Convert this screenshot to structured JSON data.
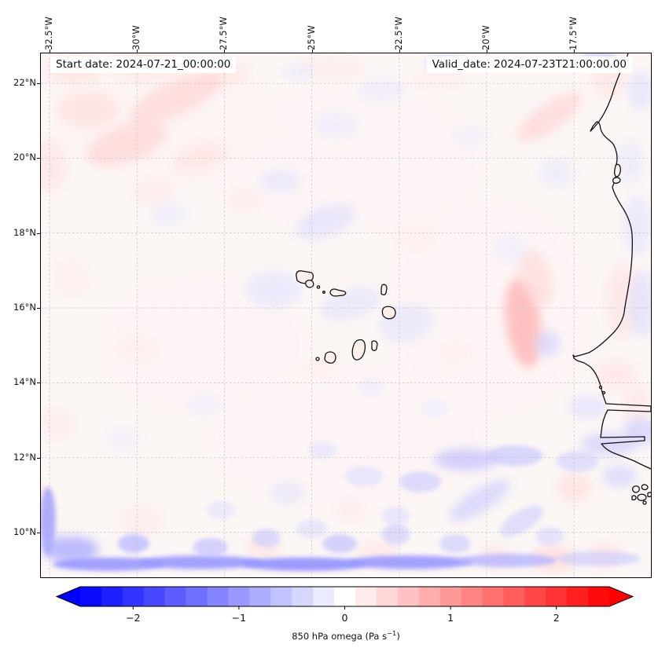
{
  "figure": {
    "start_date_label": "Start date: 2024-07-21_00:00:00",
    "valid_date_label": "Valid_date: 2024-07-23T21:00:00.00"
  },
  "axes": {
    "top_ticks": [
      "32.5°W",
      "30°W",
      "27.5°W",
      "25°W",
      "22.5°W",
      "20°W",
      "17.5°W"
    ],
    "left_ticks": [
      "22°N",
      "20°N",
      "18°N",
      "16°N",
      "14°N",
      "12°N",
      "10°N"
    ]
  },
  "colorbar": {
    "vmin": -2.5,
    "vmax": 2.5,
    "step": 0.2,
    "extend": "both",
    "tick_values": [
      -2,
      -1,
      0,
      1,
      2
    ],
    "tick_labels": [
      "−2",
      "−1",
      "0",
      "1",
      "2"
    ],
    "label_prefix": "850 hPa omega (Pa s",
    "label_sup": "−1",
    "label_suffix": ")",
    "color_negative": "#0000ff",
    "color_zero": "#ffffff",
    "color_positive": "#ff0000"
  },
  "chart_data": {
    "type": "heatmap",
    "field_name": "850 hPa omega",
    "units": "Pa s−1",
    "colormap": "bwr",
    "annotations": [
      "Start date: 2024-07-21_00:00:00",
      "Valid_date: 2024-07-23T21:00:00.00"
    ],
    "projection_extent": {
      "lon_west": -32.75,
      "lon_east": -15.3,
      "lat_south": 8.8,
      "lat_north": 22.8
    },
    "grid_lons_w": [
      32.5,
      30,
      27.5,
      25,
      22.5,
      20,
      17.5
    ],
    "grid_lats_n": [
      22,
      20,
      18,
      16,
      14,
      12,
      10
    ],
    "grid_on": true,
    "legend_position": "bottom-colorbar",
    "features": [
      {
        "lon": -29.0,
        "lat": 21.0,
        "value": 0.12,
        "rx": 3.2,
        "ry": 1.6,
        "rot": 0
      },
      {
        "lon": -24.0,
        "lat": 20.0,
        "value": 0.1,
        "rx": 4.0,
        "ry": 2.0,
        "rot": 0
      },
      {
        "lon": -20.0,
        "lat": 16.0,
        "value": 0.1,
        "rx": 3.0,
        "ry": 3.0,
        "rot": 0
      },
      {
        "lon": -28.0,
        "lat": 15.0,
        "value": 0.1,
        "rx": 3.0,
        "ry": 2.0,
        "rot": 0
      },
      {
        "lon": -24.0,
        "lat": 12.5,
        "value": 0.1,
        "rx": 4.0,
        "ry": 2.0,
        "rot": 0
      },
      {
        "lon": -31.8,
        "lat": 22.35,
        "value": 0.35,
        "rx": 0.8,
        "ry": 0.35,
        "rot": 0
      },
      {
        "lon": -29.8,
        "lat": 22.45,
        "value": 0.3,
        "rx": 1.0,
        "ry": 0.35,
        "rot": 0
      },
      {
        "lon": -27.5,
        "lat": 22.2,
        "value": 0.3,
        "rx": 0.7,
        "ry": 0.3,
        "rot": -15
      },
      {
        "lon": -31.4,
        "lat": 21.3,
        "value": 0.35,
        "rx": 0.9,
        "ry": 0.5,
        "rot": 0
      },
      {
        "lon": -28.9,
        "lat": 21.6,
        "value": 0.45,
        "rx": 1.4,
        "ry": 0.45,
        "rot": -25
      },
      {
        "lon": -30.3,
        "lat": 20.4,
        "value": 0.45,
        "rx": 1.2,
        "ry": 0.5,
        "rot": -20
      },
      {
        "lon": -32.5,
        "lat": 19.8,
        "value": 0.3,
        "rx": 0.5,
        "ry": 0.7,
        "rot": 0
      },
      {
        "lon": -28.2,
        "lat": 20.0,
        "value": 0.3,
        "rx": 0.8,
        "ry": 0.4,
        "rot": -20
      },
      {
        "lon": -29.5,
        "lat": 19.1,
        "value": 0.25,
        "rx": 0.6,
        "ry": 0.35,
        "rot": 0
      },
      {
        "lon": -24.5,
        "lat": 22.4,
        "value": 0.25,
        "rx": 1.0,
        "ry": 0.3,
        "rot": 0
      },
      {
        "lon": -21.4,
        "lat": 22.1,
        "value": 0.2,
        "rx": 0.8,
        "ry": 0.3,
        "rot": 0
      },
      {
        "lon": -18.2,
        "lat": 21.1,
        "value": 0.45,
        "rx": 1.1,
        "ry": 0.35,
        "rot": -35
      },
      {
        "lon": -16.5,
        "lat": 22.2,
        "value": 0.3,
        "rx": 0.5,
        "ry": 0.6,
        "rot": 0
      },
      {
        "lon": -26.9,
        "lat": 18.9,
        "value": 0.25,
        "rx": 0.5,
        "ry": 0.3,
        "rot": 0
      },
      {
        "lon": -31.9,
        "lat": 16.8,
        "value": 0.2,
        "rx": 0.5,
        "ry": 0.5,
        "rot": 0
      },
      {
        "lon": -30.0,
        "lat": 14.9,
        "value": 0.2,
        "rx": 0.7,
        "ry": 0.4,
        "rot": 0
      },
      {
        "lon": -18.95,
        "lat": 15.6,
        "value": 0.75,
        "rx": 0.5,
        "ry": 1.2,
        "rot": -8
      },
      {
        "lon": -18.6,
        "lat": 16.8,
        "value": 0.4,
        "rx": 0.45,
        "ry": 0.8,
        "rot": -15
      },
      {
        "lon": -16.1,
        "lat": 16.2,
        "value": 0.3,
        "rx": 0.5,
        "ry": 1.0,
        "rot": 0
      },
      {
        "lon": -16.3,
        "lat": 14.2,
        "value": 0.3,
        "rx": 0.6,
        "ry": 0.4,
        "rot": 0
      },
      {
        "lon": -17.5,
        "lat": 11.2,
        "value": 0.35,
        "rx": 0.5,
        "ry": 0.4,
        "rot": 0
      },
      {
        "lon": -15.7,
        "lat": 13.4,
        "value": 0.3,
        "rx": 0.4,
        "ry": 0.5,
        "rot": 0
      },
      {
        "lon": -26.4,
        "lat": 9.6,
        "value": 0.3,
        "rx": 0.5,
        "ry": 0.35,
        "rot": 0
      },
      {
        "lon": -23.1,
        "lat": 9.45,
        "value": 0.3,
        "rx": 0.55,
        "ry": 0.3,
        "rot": 0
      },
      {
        "lon": -18.1,
        "lat": 9.3,
        "value": 0.4,
        "rx": 0.7,
        "ry": 0.35,
        "rot": 0
      },
      {
        "lon": -19.7,
        "lat": 9.35,
        "value": 0.3,
        "rx": 0.5,
        "ry": 0.3,
        "rot": 0
      },
      {
        "lon": -16.6,
        "lat": 9.4,
        "value": 0.35,
        "rx": 0.5,
        "ry": 0.3,
        "rot": 0
      },
      {
        "lon": -29.9,
        "lat": 10.3,
        "value": 0.25,
        "rx": 0.6,
        "ry": 0.4,
        "rot": 0
      },
      {
        "lon": -32.6,
        "lat": 10.6,
        "value": 0.3,
        "rx": 0.25,
        "ry": 0.7,
        "rot": 0
      },
      {
        "lon": -24.8,
        "lat": 14.4,
        "value": 0.2,
        "rx": 0.5,
        "ry": 0.3,
        "rot": 0
      },
      {
        "lon": -22.0,
        "lat": 17.9,
        "value": 0.2,
        "rx": 0.6,
        "ry": 0.4,
        "rot": 0
      },
      {
        "lon": -20.9,
        "lat": 14.8,
        "value": 0.2,
        "rx": 0.5,
        "ry": 0.3,
        "rot": 0
      },
      {
        "lon": -32.3,
        "lat": 12.9,
        "value": 0.25,
        "rx": 0.45,
        "ry": 0.4,
        "rot": 0
      },
      {
        "lon": -23.9,
        "lat": 10.6,
        "value": 0.25,
        "rx": 0.4,
        "ry": 0.3,
        "rot": 0
      },
      {
        "lon": -23.0,
        "lat": 21.8,
        "value": -0.25,
        "rx": 0.7,
        "ry": 0.3,
        "rot": 0
      },
      {
        "lon": -21.2,
        "lat": 22.55,
        "value": -0.3,
        "rx": 0.6,
        "ry": 0.25,
        "rot": 0
      },
      {
        "lon": -16.8,
        "lat": 22.65,
        "value": -0.45,
        "rx": 0.5,
        "ry": 0.25,
        "rot": 0
      },
      {
        "lon": -15.6,
        "lat": 21.8,
        "value": -0.35,
        "rx": 0.35,
        "ry": 0.5,
        "rot": 0
      },
      {
        "lon": -24.3,
        "lat": 20.9,
        "value": -0.25,
        "rx": 0.6,
        "ry": 0.35,
        "rot": 0
      },
      {
        "lon": -25.9,
        "lat": 19.4,
        "value": -0.3,
        "rx": 0.6,
        "ry": 0.3,
        "rot": 0
      },
      {
        "lon": -24.6,
        "lat": 18.3,
        "value": -0.35,
        "rx": 0.9,
        "ry": 0.4,
        "rot": -20
      },
      {
        "lon": -29.1,
        "lat": 18.5,
        "value": -0.25,
        "rx": 0.5,
        "ry": 0.3,
        "rot": 0
      },
      {
        "lon": -26.1,
        "lat": 16.5,
        "value": -0.3,
        "rx": 0.8,
        "ry": 0.5,
        "rot": 0
      },
      {
        "lon": -23.9,
        "lat": 16.1,
        "value": -0.3,
        "rx": 0.9,
        "ry": 0.4,
        "rot": -15
      },
      {
        "lon": -22.3,
        "lat": 15.6,
        "value": -0.3,
        "rx": 0.8,
        "ry": 0.5,
        "rot": -10
      },
      {
        "lon": -15.7,
        "lat": 18.2,
        "value": -0.3,
        "rx": 0.4,
        "ry": 0.8,
        "rot": 0
      },
      {
        "lon": -15.55,
        "lat": 16.1,
        "value": -0.35,
        "rx": 0.4,
        "ry": 0.9,
        "rot": 0
      },
      {
        "lon": -18.25,
        "lat": 15.05,
        "value": -0.45,
        "rx": 0.35,
        "ry": 0.35,
        "rot": 0
      },
      {
        "lon": -19.3,
        "lat": 17.6,
        "value": -0.2,
        "rx": 0.5,
        "ry": 0.4,
        "rot": 0
      },
      {
        "lon": -16.5,
        "lat": 12.35,
        "value": -0.5,
        "rx": 0.8,
        "ry": 0.3,
        "rot": 0
      },
      {
        "lon": -20.6,
        "lat": 11.95,
        "value": -0.6,
        "rx": 0.9,
        "ry": 0.3,
        "rot": 0
      },
      {
        "lon": -19.2,
        "lat": 12.05,
        "value": -0.55,
        "rx": 0.8,
        "ry": 0.28,
        "rot": 0
      },
      {
        "lon": -17.4,
        "lat": 11.9,
        "value": -0.45,
        "rx": 0.6,
        "ry": 0.28,
        "rot": 0
      },
      {
        "lon": -21.9,
        "lat": 11.35,
        "value": -0.5,
        "rx": 0.6,
        "ry": 0.28,
        "rot": 0
      },
      {
        "lon": -20.2,
        "lat": 10.85,
        "value": -0.5,
        "rx": 1.0,
        "ry": 0.3,
        "rot": -32
      },
      {
        "lon": -19.0,
        "lat": 10.3,
        "value": -0.45,
        "rx": 0.7,
        "ry": 0.28,
        "rot": -32
      },
      {
        "lon": -23.5,
        "lat": 11.5,
        "value": -0.35,
        "rx": 0.55,
        "ry": 0.28,
        "rot": 0
      },
      {
        "lon": -25.7,
        "lat": 11.05,
        "value": -0.3,
        "rx": 0.5,
        "ry": 0.3,
        "rot": 0
      },
      {
        "lon": -28.1,
        "lat": 13.4,
        "value": -0.2,
        "rx": 0.5,
        "ry": 0.3,
        "rot": 0
      },
      {
        "lon": -30.4,
        "lat": 12.5,
        "value": -0.2,
        "rx": 0.5,
        "ry": 0.3,
        "rot": 0
      },
      {
        "lon": -32.55,
        "lat": 10.3,
        "value": -0.9,
        "rx": 0.22,
        "ry": 0.9,
        "rot": 0
      },
      {
        "lon": -31.9,
        "lat": 9.55,
        "value": -0.8,
        "rx": 0.8,
        "ry": 0.35,
        "rot": 0
      },
      {
        "lon": -30.8,
        "lat": 9.15,
        "value": -1.0,
        "rx": 1.6,
        "ry": 0.18,
        "rot": 0
      },
      {
        "lon": -28.2,
        "lat": 9.2,
        "value": -1.0,
        "rx": 1.8,
        "ry": 0.18,
        "rot": 0
      },
      {
        "lon": -25.2,
        "lat": 9.15,
        "value": -1.05,
        "rx": 1.8,
        "ry": 0.18,
        "rot": 0
      },
      {
        "lon": -22.2,
        "lat": 9.2,
        "value": -1.0,
        "rx": 1.8,
        "ry": 0.18,
        "rot": 0
      },
      {
        "lon": -19.4,
        "lat": 9.25,
        "value": -0.75,
        "rx": 1.4,
        "ry": 0.18,
        "rot": 0
      },
      {
        "lon": -16.8,
        "lat": 9.3,
        "value": -0.5,
        "rx": 1.2,
        "ry": 0.2,
        "rot": 0
      },
      {
        "lon": -30.1,
        "lat": 9.7,
        "value": -0.7,
        "rx": 0.45,
        "ry": 0.25,
        "rot": 0
      },
      {
        "lon": -27.9,
        "lat": 9.6,
        "value": -0.6,
        "rx": 0.5,
        "ry": 0.25,
        "rot": 0
      },
      {
        "lon": -26.3,
        "lat": 9.85,
        "value": -0.5,
        "rx": 0.4,
        "ry": 0.25,
        "rot": 0
      },
      {
        "lon": -24.2,
        "lat": 9.7,
        "value": -0.6,
        "rx": 0.5,
        "ry": 0.25,
        "rot": 0
      },
      {
        "lon": -22.6,
        "lat": 9.95,
        "value": -0.5,
        "rx": 0.4,
        "ry": 0.28,
        "rot": 0
      },
      {
        "lon": -20.9,
        "lat": 9.7,
        "value": -0.5,
        "rx": 0.45,
        "ry": 0.25,
        "rot": 0
      },
      {
        "lon": -18.2,
        "lat": 9.9,
        "value": -0.4,
        "rx": 0.4,
        "ry": 0.25,
        "rot": 0
      },
      {
        "lon": -24.7,
        "lat": 12.2,
        "value": -0.3,
        "rx": 0.4,
        "ry": 0.25,
        "rot": 0
      },
      {
        "lon": -17.1,
        "lat": 13.35,
        "value": -0.35,
        "rx": 0.55,
        "ry": 0.3,
        "rot": 0
      },
      {
        "lon": -15.6,
        "lat": 12.7,
        "value": -0.5,
        "rx": 0.5,
        "ry": 0.35,
        "rot": 0
      },
      {
        "lon": -16.2,
        "lat": 11.5,
        "value": -0.45,
        "rx": 0.5,
        "ry": 0.3,
        "rot": 0
      },
      {
        "lon": -22.6,
        "lat": 10.45,
        "value": -0.35,
        "rx": 0.4,
        "ry": 0.25,
        "rot": 0
      },
      {
        "lon": -25.0,
        "lat": 10.1,
        "value": -0.35,
        "rx": 0.45,
        "ry": 0.25,
        "rot": 0
      },
      {
        "lon": -27.6,
        "lat": 10.6,
        "value": -0.3,
        "rx": 0.4,
        "ry": 0.25,
        "rot": 0
      },
      {
        "lon": -15.9,
        "lat": 19.9,
        "value": -0.25,
        "rx": 0.4,
        "ry": 0.6,
        "rot": 0
      },
      {
        "lon": -20.5,
        "lat": 20.6,
        "value": -0.2,
        "rx": 0.5,
        "ry": 0.3,
        "rot": 0
      },
      {
        "lon": -18.0,
        "lat": 19.6,
        "value": -0.25,
        "rx": 0.5,
        "ry": 0.4,
        "rot": 0
      },
      {
        "lon": -25.4,
        "lat": 22.3,
        "value": -0.2,
        "rx": 0.5,
        "ry": 0.25,
        "rot": 0
      },
      {
        "lon": -23.3,
        "lat": 13.9,
        "value": -0.2,
        "rx": 0.4,
        "ry": 0.25,
        "rot": 0
      },
      {
        "lon": -21.5,
        "lat": 13.3,
        "value": -0.2,
        "rx": 0.4,
        "ry": 0.25,
        "rot": 0
      }
    ]
  }
}
